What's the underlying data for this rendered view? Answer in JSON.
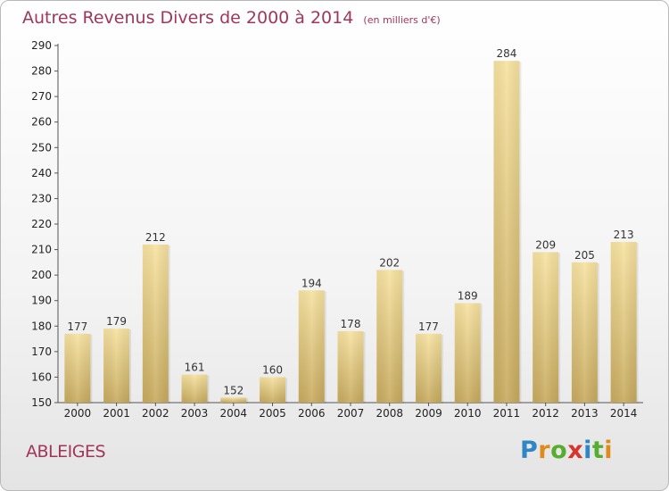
{
  "header": {
    "title": "Autres Revenus Divers de 2000 à 2014",
    "subtitle": "(en milliers d'€)"
  },
  "footer": {
    "place": "ABLEIGES",
    "brand": "Proxiti"
  },
  "colors": {
    "title": "#a0365a",
    "bar_light": "#f5df98",
    "bar_dark": "#c9ad62"
  },
  "chart_data": {
    "type": "bar",
    "title": "Autres Revenus Divers de 2000 à 2014",
    "subtitle": "(en milliers d'€)",
    "categories": [
      "2000",
      "2001",
      "2002",
      "2003",
      "2004",
      "2005",
      "2006",
      "2007",
      "2008",
      "2009",
      "2010",
      "2011",
      "2012",
      "2013",
      "2014"
    ],
    "values": [
      177,
      179,
      212,
      161,
      152,
      160,
      194,
      178,
      202,
      177,
      189,
      284,
      209,
      205,
      213
    ],
    "ylim": [
      150,
      290
    ],
    "yticks": [
      150,
      160,
      170,
      180,
      190,
      200,
      210,
      220,
      230,
      240,
      250,
      260,
      270,
      280,
      290
    ],
    "grid": false,
    "data_labels": true
  }
}
